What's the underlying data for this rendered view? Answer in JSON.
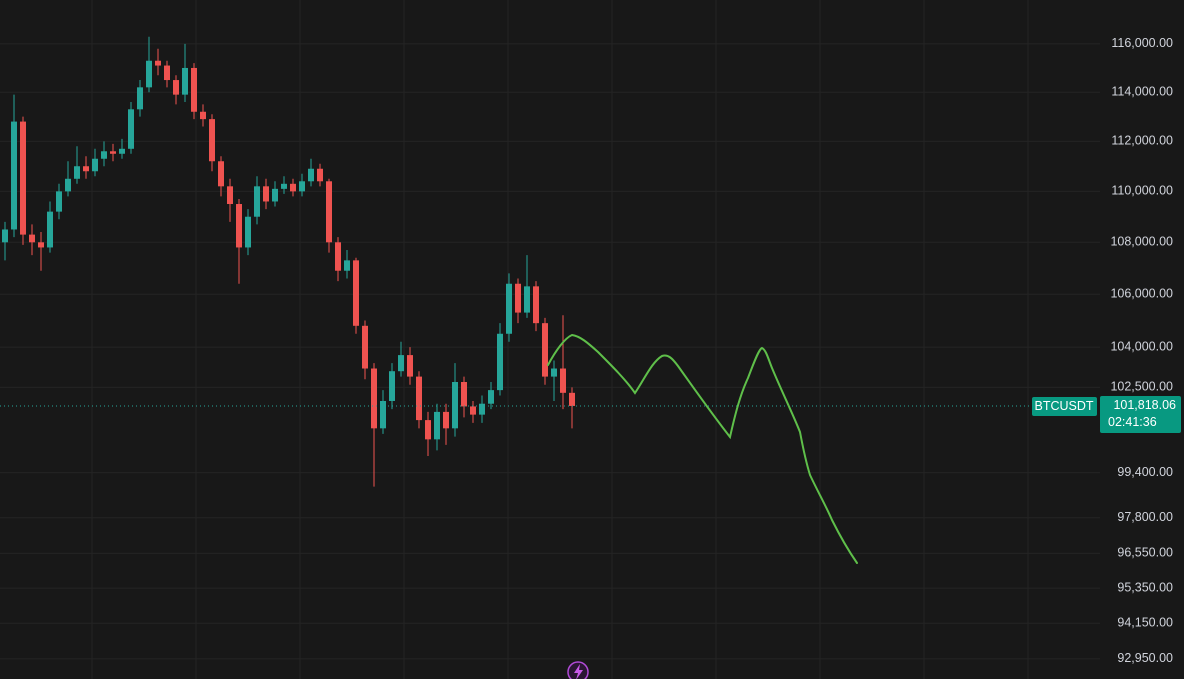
{
  "chart_data": {
    "type": "candlestick",
    "log_scale": true,
    "grid": true,
    "up_color": "#26a69a",
    "down_color": "#ef5350",
    "ylim": [
      92280,
      117850
    ],
    "yticks": [
      {
        "value": 116000,
        "label": "116,000.00"
      },
      {
        "value": 114000,
        "label": "114,000.00"
      },
      {
        "value": 112000,
        "label": "112,000.00"
      },
      {
        "value": 110000,
        "label": "110,000.00"
      },
      {
        "value": 108000,
        "label": "108,000.00"
      },
      {
        "value": 106000,
        "label": "106,000.00"
      },
      {
        "value": 104000,
        "label": "104,000.00"
      },
      {
        "value": 102500,
        "label": "102,500.00"
      },
      {
        "value": 99400,
        "label": "99,400.00"
      },
      {
        "value": 97800,
        "label": "97,800.00"
      },
      {
        "value": 96550,
        "label": "96,550.00"
      },
      {
        "value": 95350,
        "label": "95,350.00"
      },
      {
        "value": 94150,
        "label": "94,150.00"
      },
      {
        "value": 92950,
        "label": "92,950.00"
      }
    ],
    "open": [
      108000,
      108500,
      112800,
      108300,
      108000,
      107800,
      109200,
      110000,
      110500,
      111000,
      110800,
      111300,
      111600,
      111500,
      111700,
      113300,
      114200,
      115300,
      115100,
      114500,
      113900,
      115000,
      113200,
      112900,
      111200,
      110200,
      109500,
      107800,
      109000,
      110200,
      109600,
      110100,
      110300,
      110000,
      110400,
      110900,
      110400,
      108000,
      106900,
      107300,
      104800,
      103200,
      101000,
      102000,
      103100,
      103700,
      102900,
      101300,
      100600,
      101600,
      101000,
      102700,
      101800,
      101500,
      101900,
      102400,
      104500,
      106400,
      105300,
      106300,
      104900,
      102900,
      103200,
      102300
    ],
    "high": [
      108800,
      113900,
      113000,
      108700,
      108400,
      109600,
      110300,
      111200,
      111800,
      111400,
      111700,
      112000,
      111900,
      112100,
      113600,
      114500,
      116300,
      115800,
      115300,
      114700,
      116000,
      115200,
      113500,
      113100,
      111400,
      110500,
      109700,
      109300,
      110600,
      110500,
      110400,
      110600,
      110500,
      110700,
      111300,
      111100,
      110500,
      108200,
      107700,
      107400,
      105000,
      103400,
      102400,
      103400,
      104200,
      104000,
      103100,
      101600,
      101900,
      101900,
      103400,
      102900,
      102000,
      102200,
      102700,
      104900,
      106800,
      106600,
      107500,
      106500,
      105100,
      103500,
      105200,
      102500
    ],
    "low": [
      107300,
      108200,
      107900,
      107500,
      106900,
      107600,
      108900,
      109800,
      110300,
      110500,
      110600,
      111000,
      111200,
      111300,
      111500,
      113000,
      114000,
      114700,
      114200,
      113500,
      113600,
      112900,
      112600,
      110800,
      109800,
      108800,
      106400,
      107500,
      108700,
      109300,
      109400,
      109900,
      109800,
      109800,
      110200,
      110200,
      107600,
      106500,
      106600,
      104500,
      102800,
      98900,
      100800,
      101700,
      102900,
      102600,
      101000,
      100000,
      100200,
      100400,
      100700,
      101400,
      101200,
      101200,
      101700,
      102200,
      104200,
      104900,
      105100,
      104600,
      102600,
      102000,
      101700,
      101000
    ],
    "close": [
      108500,
      112800,
      108300,
      108000,
      107800,
      109200,
      110000,
      110500,
      111000,
      110800,
      111300,
      111600,
      111500,
      111700,
      113300,
      114200,
      115300,
      115100,
      114500,
      113900,
      115000,
      113200,
      112900,
      111200,
      110200,
      109500,
      107800,
      109000,
      110200,
      109600,
      110100,
      110300,
      110000,
      110400,
      110900,
      110400,
      108000,
      106900,
      107300,
      104800,
      103200,
      101000,
      102000,
      103100,
      103700,
      102900,
      101300,
      100600,
      101600,
      101000,
      102700,
      101800,
      101500,
      101900,
      102400,
      104500,
      106400,
      105300,
      106300,
      104900,
      102900,
      103200,
      102300,
      101818.06
    ],
    "symbol": "BTCUSDT",
    "price_label": "101,818.06",
    "countdown": "02:41:36"
  }
}
